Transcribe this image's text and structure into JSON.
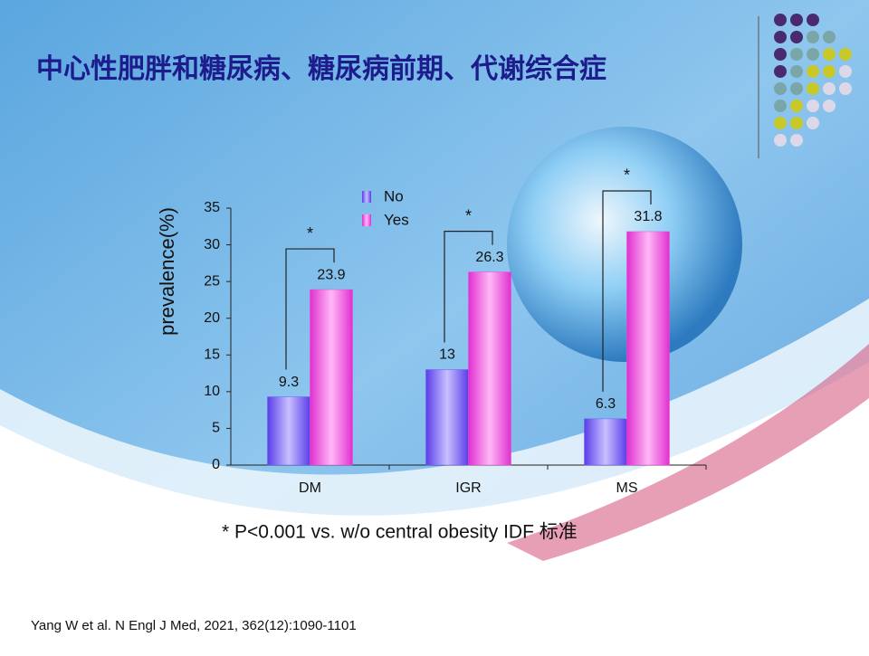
{
  "chart_data": {
    "type": "bar",
    "title": "中心性肥胖和糖尿病、糖尿病前期、代谢综合症",
    "y_label": "prevalence(%)",
    "categories": [
      "DM",
      "IGR",
      "MS"
    ],
    "series": [
      {
        "name": "No",
        "color": "#6c5cf2",
        "values": [
          9.3,
          13,
          6.3
        ]
      },
      {
        "name": "Yes",
        "color": "#ec48dc",
        "values": [
          23.9,
          26.3,
          31.8
        ]
      }
    ],
    "ylim": [
      0,
      35
    ],
    "yticks": [
      0,
      5,
      10,
      15,
      20,
      25,
      30,
      35
    ],
    "legend": "top",
    "annotations": [
      "*",
      "*",
      "*"
    ],
    "note": "* P<0.001   vs. w/o central obesity IDF 标准",
    "source": "Yang W et al. N Engl J Med, 2021, 362(12):1090-1101"
  }
}
